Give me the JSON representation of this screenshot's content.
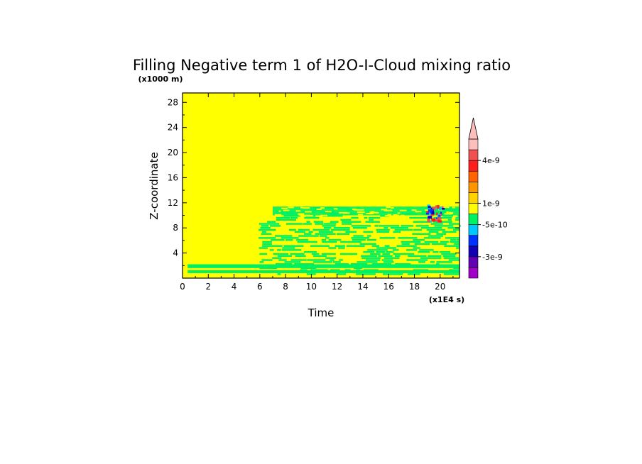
{
  "chart_data": {
    "type": "heatmap",
    "title": "Filling Negative term 1 of H2O-I-Cloud mixing ratio",
    "xlabel": "Time",
    "ylabel": "Z-coordinate",
    "x_unit_note": "(x1E4 s)",
    "y_unit_note": "(x1000 m)",
    "xlim": [
      0,
      21.5
    ],
    "ylim": [
      0,
      29.5
    ],
    "x_ticks": [
      "0",
      "2",
      "4",
      "6",
      "8",
      "10",
      "12",
      "14",
      "16",
      "18",
      "20"
    ],
    "y_ticks": [
      "4",
      "8",
      "12",
      "16",
      "20",
      "24",
      "28"
    ],
    "background_value_color": "#ffff00",
    "colorbar": {
      "colors": [
        "#a000c8",
        "#6400b4",
        "#1400b4",
        "#0032ff",
        "#00c8ff",
        "#00f064",
        "#ffff00",
        "#ffd200",
        "#ff9600",
        "#ff6400",
        "#ff1e1e",
        "#f05050",
        "#ffbebe"
      ],
      "labels": [
        "-3e-9",
        "-5e-10",
        "1e-9",
        "4e-9"
      ],
      "extend_top": true
    },
    "regions": [
      {
        "description": "green band near surface",
        "x": [
          0.4,
          21.5
        ],
        "z": [
          0.8,
          2.2
        ],
        "color": "#00f064"
      },
      {
        "description": "mottled green/yellow cloud field",
        "x": [
          5.9,
          21.5
        ],
        "z": [
          0.5,
          11.2
        ],
        "color": "#00f064"
      },
      {
        "description": "upper green layer",
        "x": [
          7.0,
          21.5
        ],
        "z": [
          10.0,
          11.4
        ],
        "color": "#00f064"
      },
      {
        "description": "negative patch (blue/red)",
        "x": [
          18.9,
          20.2
        ],
        "z": [
          9.0,
          11.8
        ],
        "color": "#1400b4"
      }
    ]
  }
}
